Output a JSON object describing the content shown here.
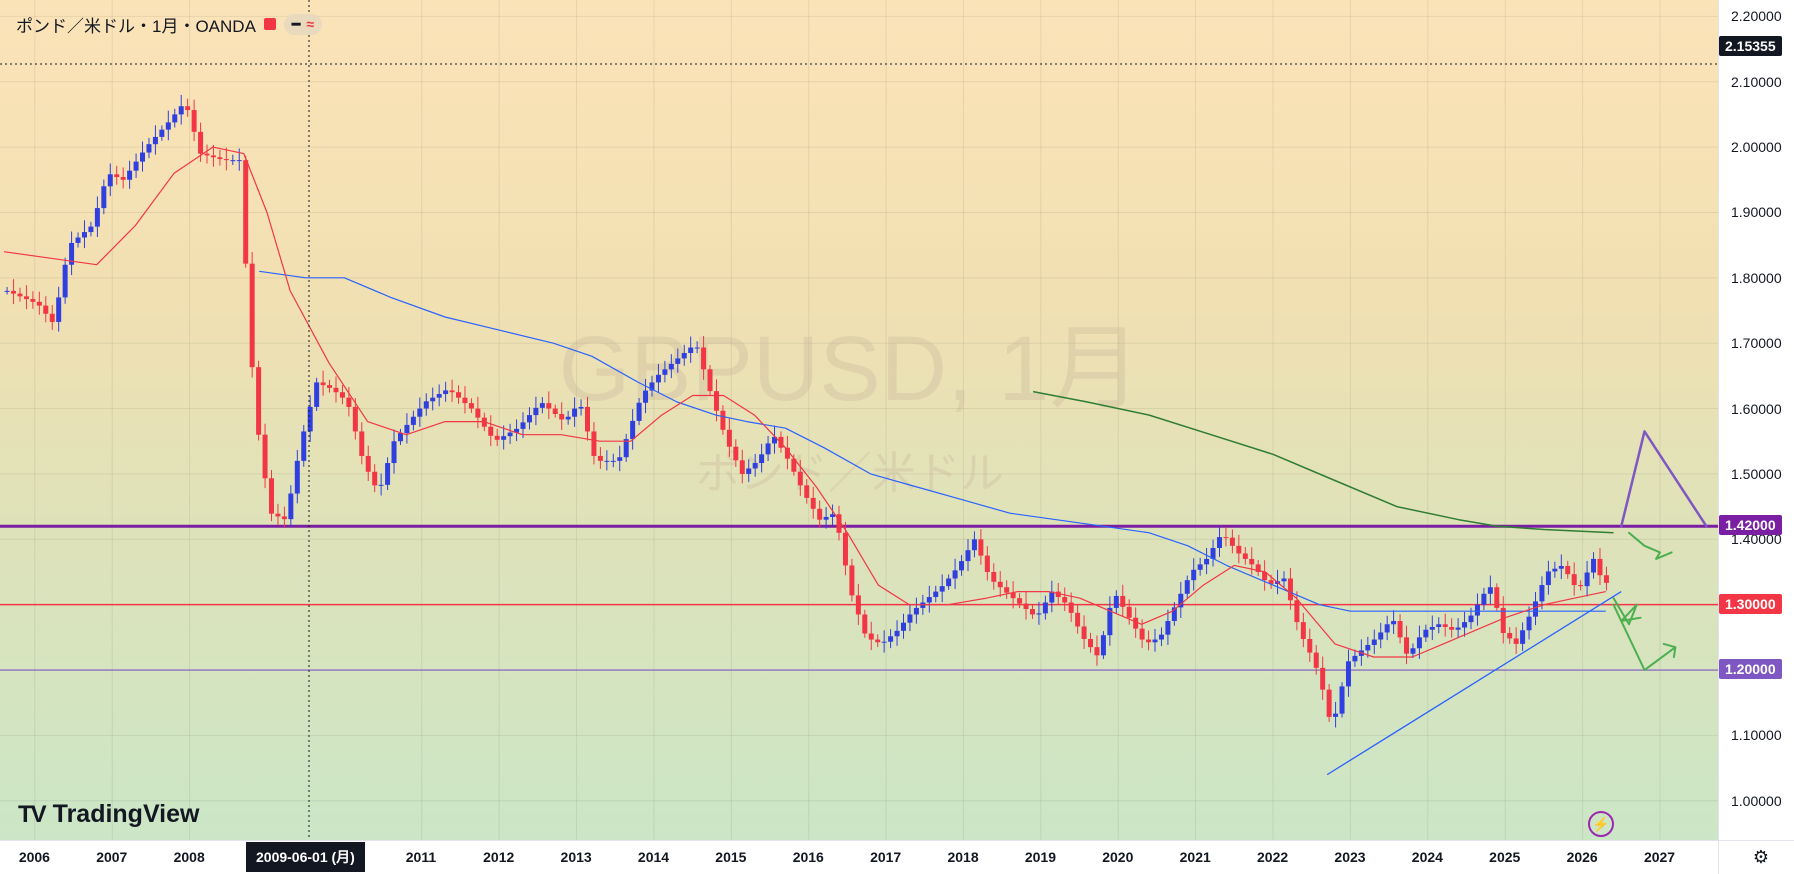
{
  "legend": {
    "title": "ポンド／米ドル・1月・OANDA",
    "indicator_icons": [
      "minus-icon",
      "wave-icon"
    ]
  },
  "watermark": {
    "symbol": "GBPUSD, 1月",
    "name": "ポンド／米ドル"
  },
  "branding": {
    "logo_text": "TradingView"
  },
  "crosshair": {
    "date_label": "2009-06-01 (月)",
    "price_label": "2.15355"
  },
  "colors": {
    "up": "#2f3fe0",
    "down": "#f23645",
    "ma_fast": "#f23645",
    "ma_slow": "#2962ff",
    "ma_long": "#2e7d32",
    "resistance": "#7b1fa2",
    "support": "#f23645",
    "support2": "#7e57c2",
    "projection_main": "#7e57c2",
    "projection_alt": "#4caf50"
  },
  "chart_data": {
    "type": "candlestick",
    "symbol": "GBPUSD",
    "timeframe": "1月",
    "x_axis": {
      "range": [
        2005.55,
        2027.75
      ],
      "ticks": [
        "2006",
        "2007",
        "2008",
        "2011",
        "2012",
        "2013",
        "2014",
        "2015",
        "2016",
        "2017",
        "2018",
        "2019",
        "2020",
        "2021",
        "2022",
        "2023",
        "2024",
        "2025",
        "2026",
        "2027"
      ]
    },
    "y_axis": {
      "range": [
        0.94,
        2.225
      ],
      "ticks": [
        "2.20000",
        "2.10000",
        "2.00000",
        "1.90000",
        "1.80000",
        "1.70000",
        "1.60000",
        "1.50000",
        "1.40000",
        "1.30000",
        "1.20000",
        "1.10000",
        "1.00000"
      ]
    },
    "grid": true,
    "close_path": [
      [
        2005.6,
        1.78
      ],
      [
        2006.0,
        1.76
      ],
      [
        2006.2,
        1.73
      ],
      [
        2006.4,
        1.85
      ],
      [
        2006.7,
        1.88
      ],
      [
        2006.9,
        1.96
      ],
      [
        2007.1,
        1.95
      ],
      [
        2007.4,
        2.0
      ],
      [
        2007.7,
        2.04
      ],
      [
        2007.9,
        2.07
      ],
      [
        2008.1,
        1.99
      ],
      [
        2008.4,
        1.98
      ],
      [
        2008.6,
        1.98
      ],
      [
        2008.8,
        1.6
      ],
      [
        2008.9,
        1.52
      ],
      [
        2009.0,
        1.44
      ],
      [
        2009.2,
        1.43
      ],
      [
        2009.4,
        1.55
      ],
      [
        2009.6,
        1.64
      ],
      [
        2009.8,
        1.63
      ],
      [
        2010.0,
        1.61
      ],
      [
        2010.2,
        1.52
      ],
      [
        2010.4,
        1.47
      ],
      [
        2010.6,
        1.55
      ],
      [
        2010.8,
        1.58
      ],
      [
        2011.0,
        1.61
      ],
      [
        2011.3,
        1.63
      ],
      [
        2011.6,
        1.6
      ],
      [
        2011.9,
        1.55
      ],
      [
        2012.2,
        1.57
      ],
      [
        2012.5,
        1.61
      ],
      [
        2012.8,
        1.58
      ],
      [
        2013.0,
        1.61
      ],
      [
        2013.2,
        1.52
      ],
      [
        2013.5,
        1.52
      ],
      [
        2013.8,
        1.62
      ],
      [
        2014.0,
        1.65
      ],
      [
        2014.3,
        1.68
      ],
      [
        2014.5,
        1.7
      ],
      [
        2014.7,
        1.62
      ],
      [
        2014.9,
        1.55
      ],
      [
        2015.1,
        1.5
      ],
      [
        2015.3,
        1.52
      ],
      [
        2015.5,
        1.56
      ],
      [
        2015.7,
        1.52
      ],
      [
        2015.9,
        1.47
      ],
      [
        2016.1,
        1.43
      ],
      [
        2016.3,
        1.44
      ],
      [
        2016.5,
        1.32
      ],
      [
        2016.7,
        1.25
      ],
      [
        2016.9,
        1.24
      ],
      [
        2017.1,
        1.26
      ],
      [
        2017.3,
        1.29
      ],
      [
        2017.5,
        1.31
      ],
      [
        2017.7,
        1.33
      ],
      [
        2017.9,
        1.36
      ],
      [
        2018.1,
        1.4
      ],
      [
        2018.3,
        1.34
      ],
      [
        2018.5,
        1.32
      ],
      [
        2018.7,
        1.3
      ],
      [
        2018.9,
        1.28
      ],
      [
        2019.1,
        1.32
      ],
      [
        2019.3,
        1.3
      ],
      [
        2019.5,
        1.25
      ],
      [
        2019.7,
        1.22
      ],
      [
        2019.9,
        1.32
      ],
      [
        2020.1,
        1.28
      ],
      [
        2020.3,
        1.24
      ],
      [
        2020.5,
        1.25
      ],
      [
        2020.7,
        1.3
      ],
      [
        2020.9,
        1.35
      ],
      [
        2021.1,
        1.37
      ],
      [
        2021.3,
        1.41
      ],
      [
        2021.5,
        1.38
      ],
      [
        2021.7,
        1.36
      ],
      [
        2021.9,
        1.33
      ],
      [
        2022.1,
        1.34
      ],
      [
        2022.3,
        1.26
      ],
      [
        2022.5,
        1.21
      ],
      [
        2022.6,
        1.17
      ],
      [
        2022.7,
        1.12
      ],
      [
        2022.8,
        1.14
      ],
      [
        2022.9,
        1.21
      ],
      [
        2023.1,
        1.23
      ],
      [
        2023.3,
        1.25
      ],
      [
        2023.5,
        1.28
      ],
      [
        2023.7,
        1.22
      ],
      [
        2023.9,
        1.26
      ],
      [
        2024.1,
        1.27
      ],
      [
        2024.3,
        1.26
      ],
      [
        2024.5,
        1.28
      ],
      [
        2024.7,
        1.32
      ],
      [
        2024.8,
        1.33
      ],
      [
        2024.9,
        1.26
      ],
      [
        2025.1,
        1.24
      ],
      [
        2025.3,
        1.29
      ],
      [
        2025.5,
        1.35
      ],
      [
        2025.7,
        1.36
      ],
      [
        2025.8,
        1.34
      ],
      [
        2025.9,
        1.32
      ],
      [
        2026.1,
        1.37
      ],
      [
        2026.2,
        1.34
      ],
      [
        2026.3,
        1.33
      ]
    ],
    "ma_fast_path": [
      [
        2005.6,
        1.84
      ],
      [
        2006.2,
        1.83
      ],
      [
        2006.8,
        1.82
      ],
      [
        2007.3,
        1.88
      ],
      [
        2007.8,
        1.96
      ],
      [
        2008.3,
        2.0
      ],
      [
        2008.7,
        1.99
      ],
      [
        2009.0,
        1.9
      ],
      [
        2009.3,
        1.78
      ],
      [
        2009.8,
        1.67
      ],
      [
        2010.3,
        1.58
      ],
      [
        2010.8,
        1.56
      ],
      [
        2011.3,
        1.58
      ],
      [
        2011.8,
        1.58
      ],
      [
        2012.3,
        1.56
      ],
      [
        2012.8,
        1.56
      ],
      [
        2013.3,
        1.55
      ],
      [
        2013.7,
        1.55
      ],
      [
        2014.1,
        1.59
      ],
      [
        2014.5,
        1.62
      ],
      [
        2014.9,
        1.62
      ],
      [
        2015.3,
        1.59
      ],
      [
        2015.7,
        1.54
      ],
      [
        2016.1,
        1.48
      ],
      [
        2016.5,
        1.41
      ],
      [
        2016.9,
        1.33
      ],
      [
        2017.3,
        1.3
      ],
      [
        2017.8,
        1.3
      ],
      [
        2018.3,
        1.31
      ],
      [
        2018.7,
        1.32
      ],
      [
        2019.1,
        1.32
      ],
      [
        2019.5,
        1.31
      ],
      [
        2019.9,
        1.29
      ],
      [
        2020.3,
        1.27
      ],
      [
        2020.7,
        1.29
      ],
      [
        2021.1,
        1.33
      ],
      [
        2021.5,
        1.36
      ],
      [
        2021.9,
        1.35
      ],
      [
        2022.3,
        1.31
      ],
      [
        2022.8,
        1.24
      ],
      [
        2023.3,
        1.22
      ],
      [
        2023.8,
        1.22
      ],
      [
        2024.2,
        1.24
      ],
      [
        2024.6,
        1.26
      ],
      [
        2025.0,
        1.28
      ],
      [
        2025.5,
        1.3
      ],
      [
        2025.9,
        1.31
      ],
      [
        2026.3,
        1.32
      ]
    ],
    "ma_slow_path": [
      [
        2008.9,
        1.81
      ],
      [
        2009.5,
        1.8
      ],
      [
        2010.0,
        1.8
      ],
      [
        2010.6,
        1.77
      ],
      [
        2011.3,
        1.74
      ],
      [
        2012.0,
        1.72
      ],
      [
        2012.7,
        1.7
      ],
      [
        2013.2,
        1.68
      ],
      [
        2013.8,
        1.64
      ],
      [
        2014.3,
        1.61
      ],
      [
        2014.8,
        1.59
      ],
      [
        2015.2,
        1.58
      ],
      [
        2015.7,
        1.57
      ],
      [
        2016.2,
        1.54
      ],
      [
        2016.8,
        1.5
      ],
      [
        2017.4,
        1.48
      ],
      [
        2018.0,
        1.46
      ],
      [
        2018.6,
        1.44
      ],
      [
        2019.2,
        1.43
      ],
      [
        2019.8,
        1.42
      ],
      [
        2020.4,
        1.41
      ],
      [
        2020.9,
        1.39
      ],
      [
        2021.4,
        1.36
      ],
      [
        2022.0,
        1.33
      ],
      [
        2022.6,
        1.3
      ],
      [
        2023.0,
        1.29
      ],
      [
        2023.6,
        1.29
      ],
      [
        2024.2,
        1.29
      ],
      [
        2024.8,
        1.29
      ],
      [
        2025.4,
        1.29
      ],
      [
        2026.0,
        1.29
      ],
      [
        2026.3,
        1.29
      ]
    ],
    "ma_long_path": [
      [
        2018.9,
        1.626
      ],
      [
        2019.6,
        1.61
      ],
      [
        2020.4,
        1.59
      ],
      [
        2021.2,
        1.56
      ],
      [
        2022.0,
        1.53
      ],
      [
        2022.8,
        1.49
      ],
      [
        2023.6,
        1.45
      ],
      [
        2024.4,
        1.43
      ],
      [
        2024.9,
        1.42
      ],
      [
        2025.5,
        1.415
      ],
      [
        2026.4,
        1.41
      ]
    ],
    "trendline": [
      [
        2022.7,
        1.04
      ],
      [
        2026.5,
        1.32
      ]
    ],
    "horizontal_lines": [
      {
        "price": 1.42,
        "label": "1.42000",
        "color": "#7b1fa2"
      },
      {
        "price": 1.3,
        "label": "1.30000",
        "color": "#f23645"
      },
      {
        "price": 1.2,
        "label": "1.20000",
        "color": "#7e57c2"
      }
    ],
    "projections": [
      {
        "color": "#7e57c2",
        "points": [
          [
            2026.5,
            1.42
          ],
          [
            2026.8,
            1.565
          ],
          [
            2027.6,
            1.42
          ]
        ]
      },
      {
        "color": "#4caf50",
        "points": [
          [
            2026.6,
            1.41
          ],
          [
            2026.8,
            1.39
          ],
          [
            2027.0,
            1.38
          ],
          [
            2026.95,
            1.37
          ],
          [
            2027.15,
            1.38
          ]
        ]
      },
      {
        "color": "#4caf50",
        "points": [
          [
            2026.4,
            1.31
          ],
          [
            2026.6,
            1.27
          ],
          [
            2026.7,
            1.3
          ],
          [
            2026.5,
            1.275
          ],
          [
            2026.75,
            1.28
          ]
        ]
      },
      {
        "color": "#4caf50",
        "points": [
          [
            2026.4,
            1.3
          ],
          [
            2026.8,
            1.2
          ],
          [
            2027.2,
            1.235
          ],
          [
            2027.05,
            1.24
          ],
          [
            2027.2,
            1.235
          ],
          [
            2027.18,
            1.22
          ]
        ]
      }
    ]
  }
}
